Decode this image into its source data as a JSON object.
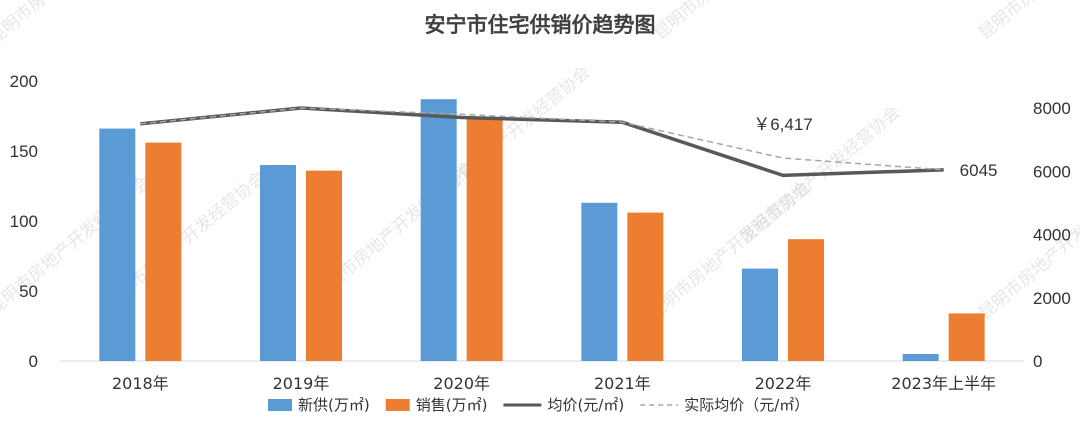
{
  "watermark": "昆明市房地产开发经营协会",
  "chart_data": {
    "type": "bar",
    "title": "安宁市住宅供销价趋势图",
    "categories": [
      "2018年",
      "2019年",
      "2020年",
      "2021年",
      "2022年",
      "2023年上半年"
    ],
    "series": [
      {
        "name": "新供(万㎡)",
        "kind": "bar",
        "axis": "left",
        "color": "#5B9BD5",
        "values": [
          166,
          140,
          187,
          113,
          66,
          5
        ]
      },
      {
        "name": "销售(万㎡)",
        "kind": "bar",
        "axis": "left",
        "color": "#ED7D31",
        "values": [
          156,
          136,
          174,
          106,
          87,
          34
        ]
      },
      {
        "name": "均价(元/㎡)",
        "kind": "line",
        "axis": "right",
        "color": "#595959",
        "values": [
          7500,
          8000,
          7700,
          7550,
          5870,
          6045
        ]
      },
      {
        "name": "实际均价（元/㎡）",
        "kind": "dashed-line",
        "axis": "right",
        "color": "#a6a6a6",
        "values": [
          7500,
          8000,
          7800,
          7550,
          6417,
          6045
        ]
      }
    ],
    "left_axis": {
      "min": 0,
      "max": 200,
      "ticks": [
        0,
        50,
        100,
        150,
        200
      ]
    },
    "right_axis": {
      "min": 0,
      "max": 8000,
      "ticks": [
        0,
        2000,
        4000,
        6000,
        8000
      ]
    },
    "annotations": [
      {
        "text": "￥6,417",
        "series": 3,
        "index": 4
      },
      {
        "text": "6045",
        "series": 2,
        "index": 5
      }
    ],
    "legend": "bottom",
    "grid": false
  }
}
